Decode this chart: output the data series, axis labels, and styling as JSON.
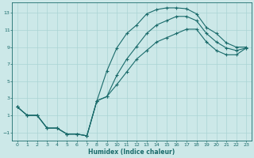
{
  "title": "",
  "xlabel": "Humidex (Indice chaleur)",
  "bg_color": "#cce8e8",
  "grid_color": "#aad4d4",
  "line_color": "#1a6b6b",
  "xlim": [
    -0.5,
    23.5
  ],
  "ylim": [
    -2.0,
    14.2
  ],
  "xticks": [
    0,
    1,
    2,
    3,
    4,
    5,
    6,
    7,
    8,
    9,
    10,
    11,
    12,
    13,
    14,
    15,
    16,
    17,
    18,
    19,
    20,
    21,
    22,
    23
  ],
  "yticks": [
    -1,
    1,
    3,
    5,
    7,
    9,
    11,
    13
  ],
  "line1_x": [
    0,
    1,
    2,
    3,
    4,
    5,
    6,
    7,
    8,
    9,
    10,
    11,
    12,
    13,
    14,
    15,
    16,
    17,
    18,
    19,
    20,
    21,
    22,
    23
  ],
  "line1_y": [
    2,
    1,
    1,
    -0.5,
    -0.5,
    -1.2,
    -1.2,
    -1.4,
    2.7,
    6.2,
    8.9,
    10.6,
    11.6,
    12.9,
    13.4,
    13.6,
    13.6,
    13.5,
    12.9,
    11.3,
    10.6,
    9.5,
    9.0,
    9.0
  ],
  "line2_x": [
    0,
    1,
    2,
    3,
    4,
    5,
    6,
    7,
    8,
    9,
    10,
    11,
    12,
    13,
    14,
    15,
    16,
    17,
    18,
    19,
    20,
    21,
    22,
    23
  ],
  "line2_y": [
    2,
    1,
    1,
    -0.5,
    -0.5,
    -1.2,
    -1.2,
    -1.4,
    2.7,
    3.2,
    5.7,
    7.6,
    9.1,
    10.6,
    11.6,
    12.1,
    12.6,
    12.6,
    12.1,
    10.6,
    9.6,
    8.9,
    8.6,
    8.9
  ],
  "line3_x": [
    0,
    1,
    2,
    3,
    4,
    5,
    6,
    7,
    8,
    9,
    10,
    11,
    12,
    13,
    14,
    15,
    16,
    17,
    18,
    19,
    20,
    21,
    22,
    23
  ],
  "line3_y": [
    2,
    1,
    1,
    -0.5,
    -0.5,
    -1.2,
    -1.2,
    -1.4,
    2.7,
    3.2,
    4.6,
    6.1,
    7.6,
    8.6,
    9.6,
    10.1,
    10.6,
    11.1,
    11.1,
    9.6,
    8.6,
    8.1,
    8.1,
    8.9
  ]
}
